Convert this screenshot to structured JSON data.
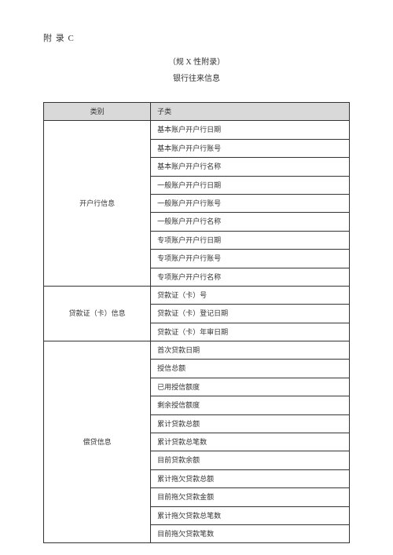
{
  "header": {
    "appendix": "附 录  C",
    "subtitle": "（规 X 性附录）",
    "title": "银行往来信息"
  },
  "table": {
    "headers": {
      "category": "类别",
      "subcategory": "子类"
    },
    "groups": [
      {
        "category": "开户行信息",
        "items": [
          "基本账户开户行日期",
          "基本账户开户行账号",
          "基本账户开户行名称",
          "一般账户开户行日期",
          "一般账户开户行账号",
          "一般账户开户行名称",
          "专项账户开户行日期",
          "专项账户开户行账号",
          "专项账户开户行名称"
        ]
      },
      {
        "category": "贷款证（卡）信息",
        "items": [
          "贷款证（卡）号",
          "贷款证（卡）登记日期",
          "贷款证（卡）年审日期"
        ]
      },
      {
        "category": "偿贷信息",
        "items": [
          "首次贷款日期",
          "授信总额",
          "已用授信额度",
          "剩余授信额度",
          "累计贷款总额",
          "累计贷款总笔数",
          "目前贷款余额",
          "累计拖欠贷款总额",
          "目前拖欠贷款金额",
          "累计拖欠贷款总笔数",
          "目前拖欠贷款笔数"
        ]
      }
    ]
  }
}
